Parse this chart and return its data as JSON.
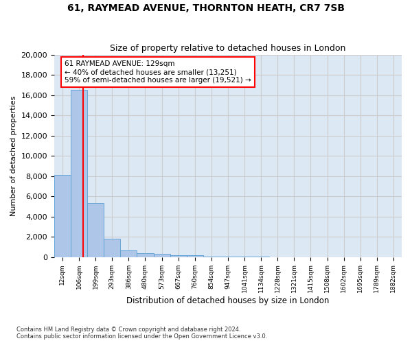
{
  "title1": "61, RAYMEAD AVENUE, THORNTON HEATH, CR7 7SB",
  "title2": "Size of property relative to detached houses in London",
  "xlabel": "Distribution of detached houses by size in London",
  "ylabel": "Number of detached properties",
  "bar_values": [
    8100,
    16500,
    5300,
    1800,
    650,
    350,
    280,
    200,
    200,
    50,
    30,
    15,
    10,
    5,
    3,
    2,
    1,
    1,
    0,
    0,
    0
  ],
  "bar_labels": [
    "12sqm",
    "106sqm",
    "199sqm",
    "293sqm",
    "386sqm",
    "480sqm",
    "573sqm",
    "667sqm",
    "760sqm",
    "854sqm",
    "947sqm",
    "1041sqm",
    "1134sqm",
    "1228sqm",
    "1321sqm",
    "1415sqm",
    "1508sqm",
    "1602sqm",
    "1695sqm",
    "1789sqm",
    "1882sqm"
  ],
  "bar_color": "#aec6e8",
  "bar_edge_color": "#5a9fd4",
  "grid_color": "#cccccc",
  "background_color": "#dde8f5",
  "red_line_x": 1.23,
  "annotation_text": "61 RAYMEAD AVENUE: 129sqm\n← 40% of detached houses are smaller (13,251)\n59% of semi-detached houses are larger (19,521) →",
  "footnote1": "Contains HM Land Registry data © Crown copyright and database right 2024.",
  "footnote2": "Contains public sector information licensed under the Open Government Licence v3.0.",
  "ylim": [
    0,
    20000
  ],
  "yticks": [
    0,
    2000,
    4000,
    6000,
    8000,
    10000,
    12000,
    14000,
    16000,
    18000,
    20000
  ]
}
